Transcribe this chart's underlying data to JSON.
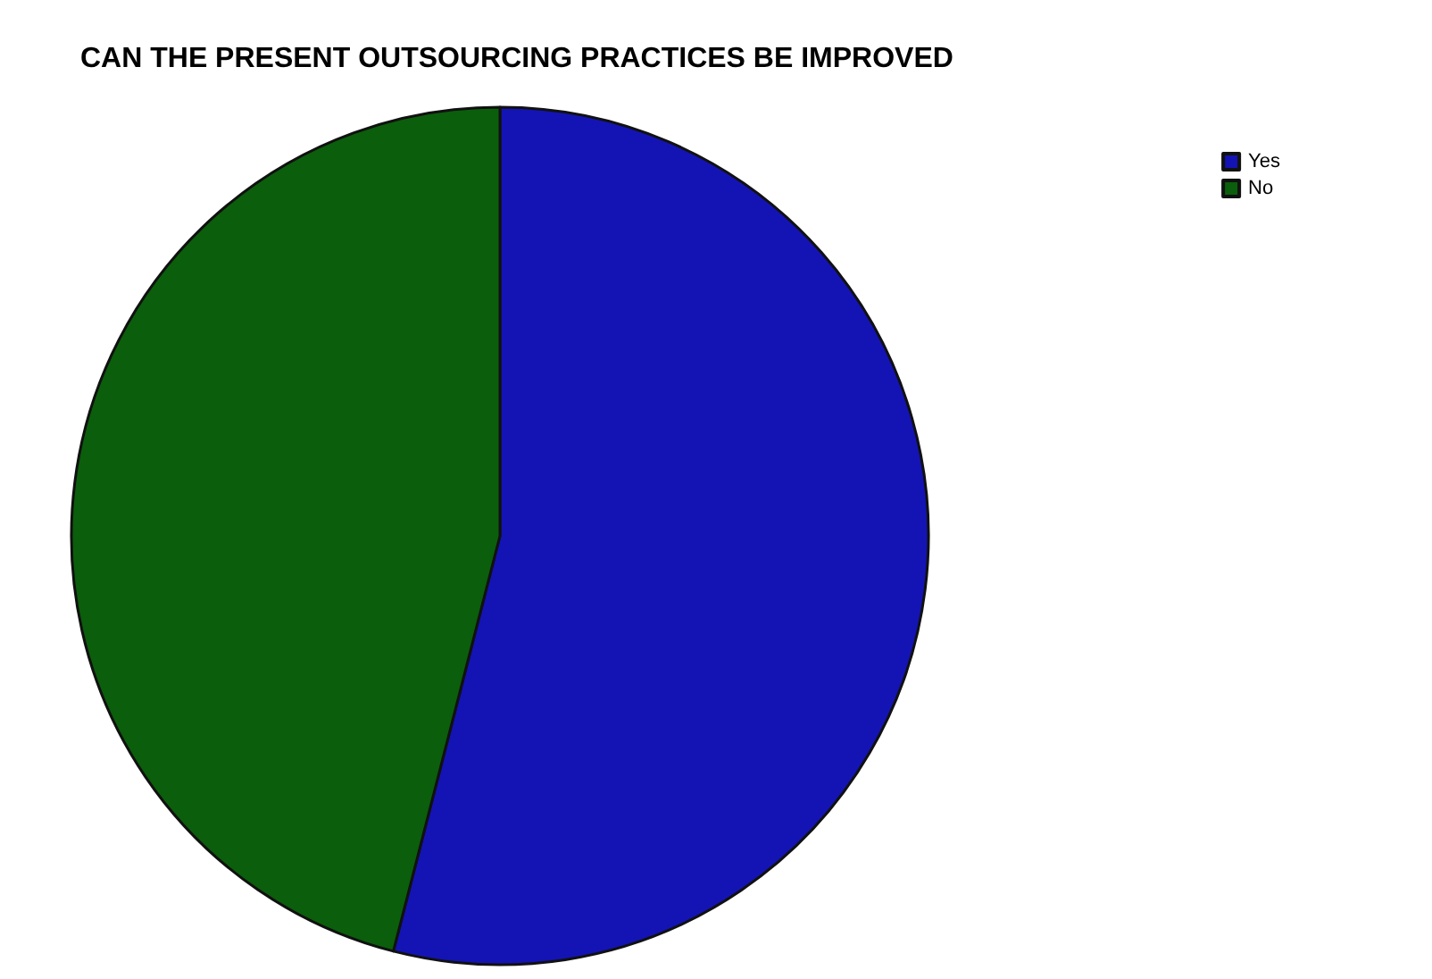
{
  "chart_data": {
    "type": "pie",
    "title": "CAN THE PRESENT OUTSOURCING PRACTICES BE IMPROVED",
    "categories": [
      "Yes",
      "No"
    ],
    "values": [
      54,
      46
    ],
    "colors": [
      "#1414b4",
      "#0b5e0b"
    ],
    "legend": "top right"
  }
}
